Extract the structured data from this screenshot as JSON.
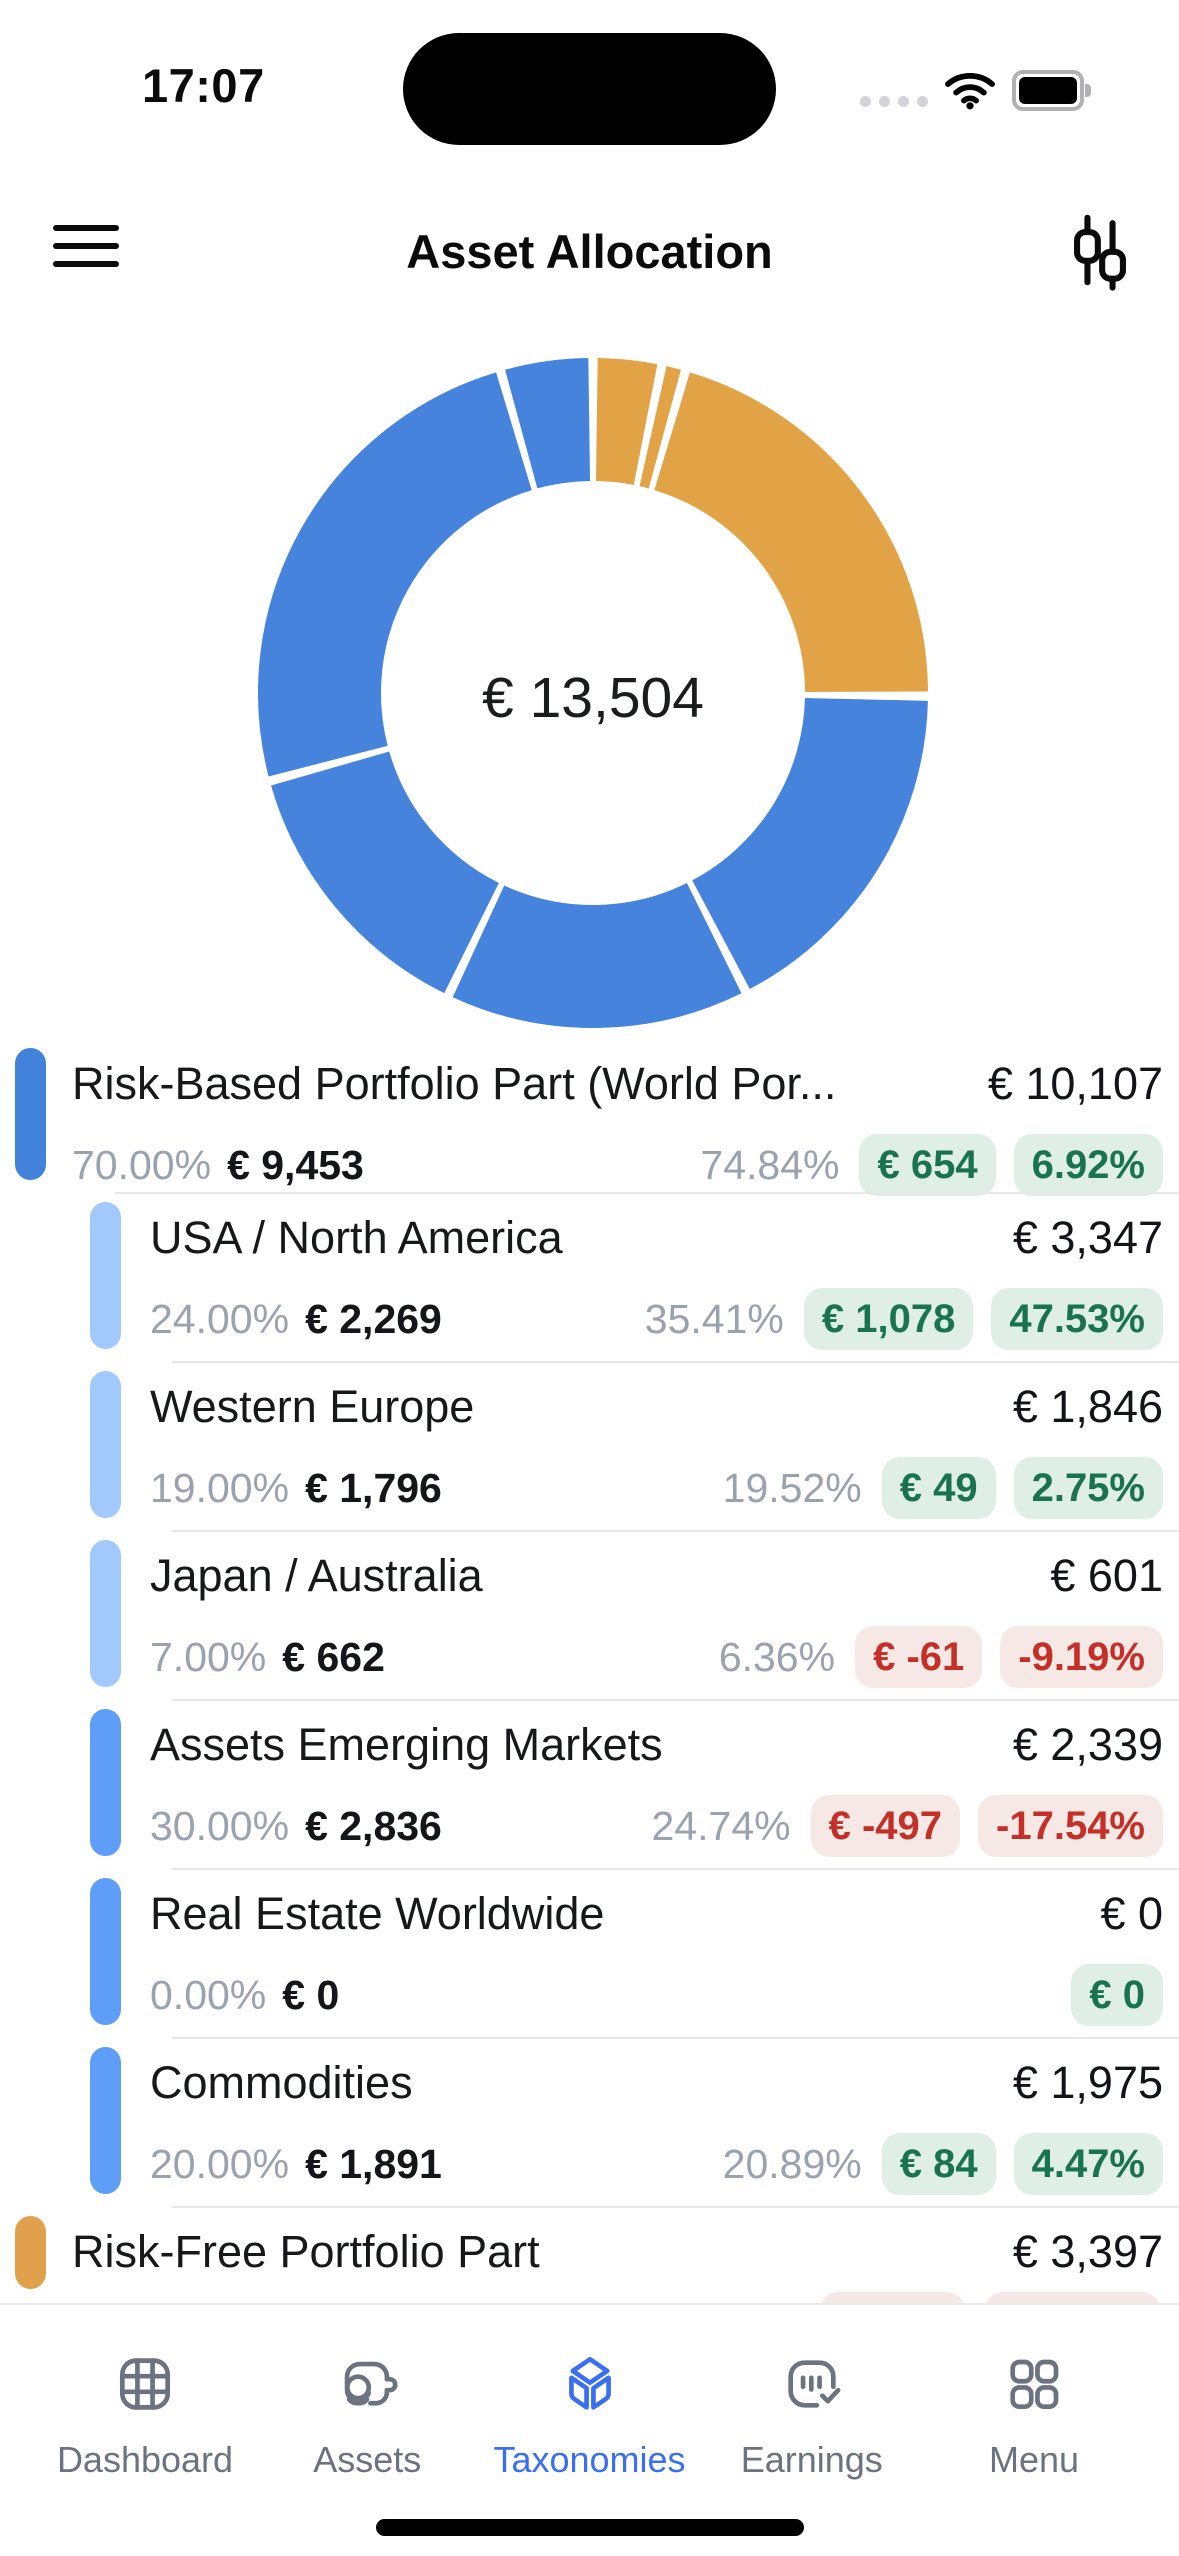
{
  "status_bar": {
    "time": "17:07"
  },
  "header": {
    "title": "Asset Allocation"
  },
  "chart_data": {
    "type": "donut",
    "center_total": "€ 13,504",
    "currency": "EUR",
    "gap_deg": 1.6,
    "inner_radius_ratio": 0.63,
    "colors": {
      "risk_based": "#4583dc",
      "risk_free": "#e1a345"
    },
    "segments": [
      {
        "label": "risk-free-segment-1",
        "pct": 3.3,
        "group": "risk_free"
      },
      {
        "label": "risk-free-segment-2",
        "pct": 1.15,
        "group": "risk_free"
      },
      {
        "label": "risk-free-segment-3",
        "pct": 20.7,
        "group": "risk_free"
      },
      {
        "label": "Assets Emerging Markets",
        "pct": 17.32,
        "group": "risk_based"
      },
      {
        "label": "Commodities",
        "pct": 14.63,
        "group": "risk_based"
      },
      {
        "label": "Western Europe",
        "pct": 13.67,
        "group": "risk_based"
      },
      {
        "label": "USA / North America",
        "pct": 24.78,
        "group": "risk_based"
      },
      {
        "label": "Japan / Australia",
        "pct": 4.45,
        "group": "risk_based"
      }
    ]
  },
  "list": {
    "rows": [
      {
        "name": "Risk-Based Portfolio Part (World Por...",
        "value": "€ 10,107",
        "target_pct": "70.00%",
        "target_value": "€ 9,453",
        "actual_pct": "74.84%",
        "delta_value": "€ 654",
        "delta_pct": "6.92%",
        "trend": "positive",
        "level": 0,
        "bar_color": "#4382db"
      },
      {
        "name": "USA / North America",
        "value": "€ 3,347",
        "target_pct": "24.00%",
        "target_value": "€ 2,269",
        "actual_pct": "35.41%",
        "delta_value": "€ 1,078",
        "delta_pct": "47.53%",
        "trend": "positive",
        "level": 1,
        "bar_color": "#a1c9fb"
      },
      {
        "name": "Western Europe",
        "value": "€ 1,846",
        "target_pct": "19.00%",
        "target_value": "€ 1,796",
        "actual_pct": "19.52%",
        "delta_value": "€ 49",
        "delta_pct": "2.75%",
        "trend": "positive",
        "level": 1,
        "bar_color": "#a1c9fb"
      },
      {
        "name": "Japan / Australia",
        "value": "€ 601",
        "target_pct": "7.00%",
        "target_value": "€ 662",
        "actual_pct": "6.36%",
        "delta_value": "€ -61",
        "delta_pct": "-9.19%",
        "trend": "negative",
        "level": 1,
        "bar_color": "#a1c9fb"
      },
      {
        "name": "Assets Emerging Markets",
        "value": "€ 2,339",
        "target_pct": "30.00%",
        "target_value": "€ 2,836",
        "actual_pct": "24.74%",
        "delta_value": "€ -497",
        "delta_pct": "-17.54%",
        "trend": "negative",
        "level": 1,
        "bar_color": "#5e9df8"
      },
      {
        "name": "Real Estate Worldwide",
        "value": "€ 0",
        "target_pct": "0.00%",
        "target_value": "€ 0",
        "delta_value": "€ 0",
        "trend": "positive",
        "level": 1,
        "bar_color": "#5e9df8"
      },
      {
        "name": "Commodities",
        "value": "€ 1,975",
        "target_pct": "20.00%",
        "target_value": "€ 1,891",
        "actual_pct": "20.89%",
        "delta_value": "€ 84",
        "delta_pct": "4.47%",
        "trend": "positive",
        "level": 1,
        "bar_color": "#5e9df8"
      },
      {
        "name": "Risk-Free Portfolio Part",
        "value": "€ 3,397",
        "trend": "negative",
        "level": 0,
        "bar_color": "#e1a14c",
        "cut_off": true
      }
    ]
  },
  "tab_bar": {
    "active": "Taxonomies",
    "items": [
      {
        "label": "Dashboard",
        "icon": "grid-icon"
      },
      {
        "label": "Assets",
        "icon": "wallet-coins-icon"
      },
      {
        "label": "Taxonomies",
        "icon": "cube-icon"
      },
      {
        "label": "Earnings",
        "icon": "chat-check-icon"
      },
      {
        "label": "Menu",
        "icon": "four-squares-icon"
      }
    ]
  },
  "colors": {
    "accent_blue": "#3a6ff2",
    "positive_text": "#1a7350",
    "positive_bg": "#dfefe6",
    "negative_text": "#c42f27",
    "negative_bg": "#f5e8e5"
  }
}
